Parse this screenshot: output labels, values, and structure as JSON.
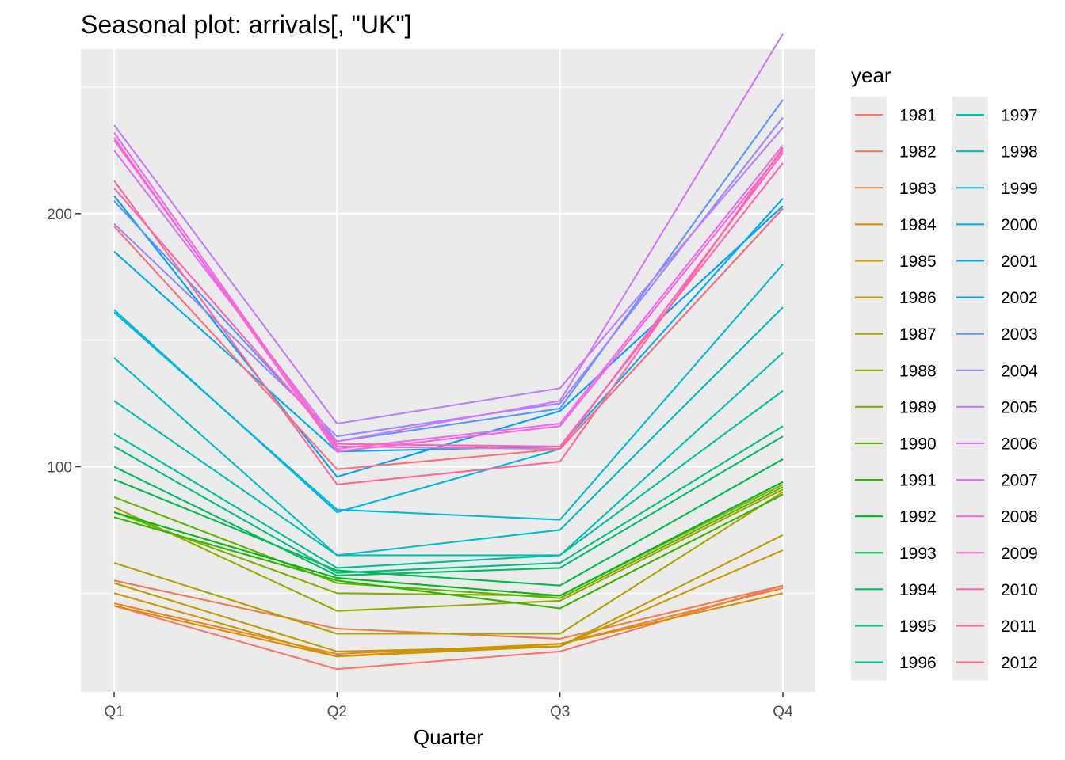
{
  "chart_data": {
    "type": "line",
    "title": "Seasonal plot: arrivals[, \"UK\"]",
    "xlabel": "Quarter",
    "ylabel": "",
    "categories": [
      "Q1",
      "Q2",
      "Q3",
      "Q4"
    ],
    "ylim": [
      11,
      265
    ],
    "yticks": [
      100,
      200
    ],
    "grid": true,
    "legend": {
      "title": "year",
      "position": "right",
      "columns": 2
    },
    "series": [
      {
        "name": "1981",
        "color": "#F8766D",
        "values": [
          45,
          20,
          27,
          53
        ]
      },
      {
        "name": "1982",
        "color": "#F17D4F",
        "values": [
          55,
          36,
          32,
          53
        ]
      },
      {
        "name": "1983",
        "color": "#E7852C",
        "values": [
          46,
          26,
          30,
          52
        ]
      },
      {
        "name": "1984",
        "color": "#DC8D00",
        "values": [
          45,
          25,
          30,
          50
        ]
      },
      {
        "name": "1985",
        "color": "#CE9600",
        "values": [
          50,
          25,
          29,
          67
        ]
      },
      {
        "name": "1986",
        "color": "#BE9C00",
        "values": [
          54,
          27,
          29,
          73
        ]
      },
      {
        "name": "1987",
        "color": "#ADA200",
        "values": [
          62,
          34,
          34,
          90
        ]
      },
      {
        "name": "1988",
        "color": "#99A800",
        "values": [
          84,
          43,
          47,
          91
        ]
      },
      {
        "name": "1989",
        "color": "#81AD00",
        "values": [
          82,
          50,
          49,
          93
        ]
      },
      {
        "name": "1990",
        "color": "#63B100",
        "values": [
          88,
          54,
          48,
          92
        ]
      },
      {
        "name": "1991",
        "color": "#33B400",
        "values": [
          80,
          55,
          44,
          89
        ]
      },
      {
        "name": "1992",
        "color": "#00B71D",
        "values": [
          82,
          56,
          49,
          94
        ]
      },
      {
        "name": "1993",
        "color": "#00BA49",
        "values": [
          95,
          59,
          53,
          103
        ]
      },
      {
        "name": "1994",
        "color": "#00BC68",
        "values": [
          100,
          57,
          60,
          112
        ]
      },
      {
        "name": "1995",
        "color": "#00BE84",
        "values": [
          108,
          58,
          62,
          116
        ]
      },
      {
        "name": "1996",
        "color": "#00BF9B",
        "values": [
          113,
          60,
          65,
          130
        ]
      },
      {
        "name": "1997",
        "color": "#00BFB1",
        "values": [
          126,
          65,
          65,
          145
        ]
      },
      {
        "name": "1998",
        "color": "#00BDC6",
        "values": [
          143,
          65,
          75,
          163
        ]
      },
      {
        "name": "1999",
        "color": "#00BAD7",
        "values": [
          161,
          83,
          79,
          180
        ]
      },
      {
        "name": "2000",
        "color": "#00B4E6",
        "values": [
          162,
          82,
          107,
          202
        ]
      },
      {
        "name": "2001",
        "color": "#00ACF2",
        "values": [
          185,
          106,
          108,
          206
        ]
      },
      {
        "name": "2002",
        "color": "#00A1FC",
        "values": [
          207,
          96,
          122,
          203
        ]
      },
      {
        "name": "2003",
        "color": "#5996FF",
        "values": [
          205,
          110,
          123,
          245
        ]
      },
      {
        "name": "2004",
        "color": "#9689FF",
        "values": [
          196,
          112,
          125,
          238
        ]
      },
      {
        "name": "2005",
        "color": "#BC7DFF",
        "values": [
          235,
          117,
          131,
          234
        ]
      },
      {
        "name": "2006",
        "color": "#D774FD",
        "values": [
          225,
          110,
          126,
          271
        ]
      },
      {
        "name": "2007",
        "color": "#EB6DF0",
        "values": [
          232,
          107,
          117,
          227
        ]
      },
      {
        "name": "2008",
        "color": "#F867DF",
        "values": [
          230,
          106,
          116,
          225
        ]
      },
      {
        "name": "2009",
        "color": "#FF63CB",
        "values": [
          229,
          108,
          107,
          224
        ]
      },
      {
        "name": "2010",
        "color": "#FF64B2",
        "values": [
          210,
          109,
          108,
          220
        ]
      },
      {
        "name": "2011",
        "color": "#FF6897",
        "values": [
          213,
          93,
          102,
          226
        ]
      },
      {
        "name": "2012",
        "color": "#FD6F7B",
        "values": [
          195,
          99,
          107,
          202
        ]
      }
    ]
  }
}
